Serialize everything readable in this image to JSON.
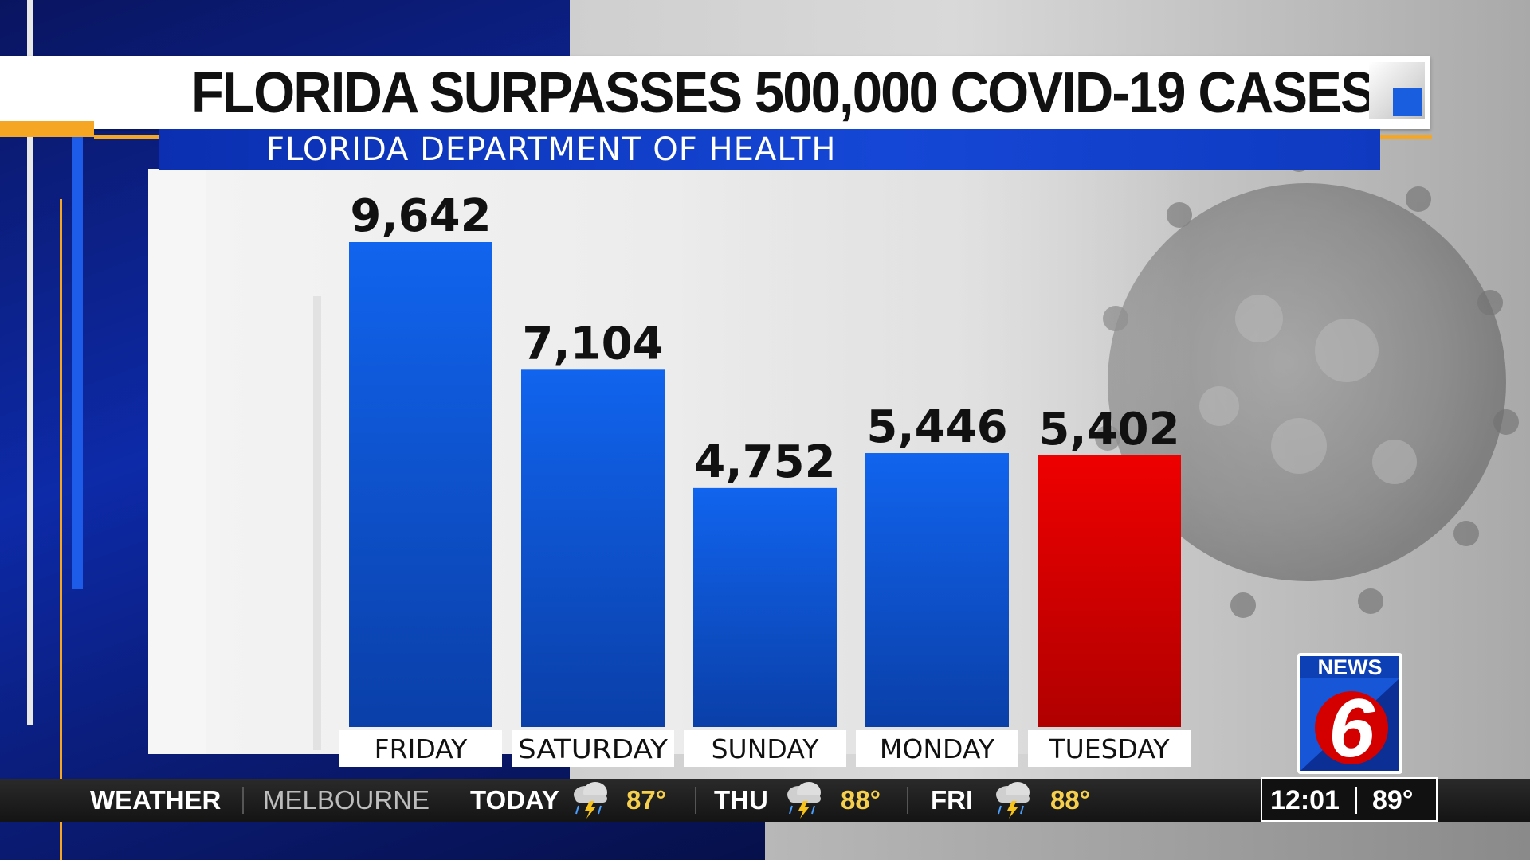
{
  "headline": "FLORIDA SURPASSES 500,000 COVID-19 CASES",
  "source": "FLORIDA DEPARTMENT OF HEALTH",
  "chart_data": {
    "type": "bar",
    "title": "FLORIDA SURPASSES 500,000 COVID-19 CASES",
    "subtitle": "FLORIDA DEPARTMENT OF HEALTH",
    "categories": [
      "FRIDAY",
      "SATURDAY",
      "SUNDAY",
      "MONDAY",
      "TUESDAY"
    ],
    "values": [
      9642,
      7104,
      4752,
      5446,
      5402
    ],
    "value_labels": [
      "9,642",
      "7,104",
      "4,752",
      "5,446",
      "5,402"
    ],
    "bar_colors": [
      "#1160ec",
      "#1160ec",
      "#1160ec",
      "#1160ec",
      "#e00000"
    ],
    "xlabel": "",
    "ylabel": "",
    "ylim": [
      0,
      9642
    ],
    "grid": false,
    "legend": "none"
  },
  "ticker": {
    "label": "WEATHER",
    "city": "MELBOURNE",
    "forecast": [
      {
        "day": "TODAY",
        "temp": "87°",
        "icon": "thunderstorm-icon"
      },
      {
        "day": "THU",
        "temp": "88°",
        "icon": "thunderstorm-icon"
      },
      {
        "day": "FRI",
        "temp": "88°",
        "icon": "thunderstorm-icon"
      }
    ],
    "time": "12:01",
    "current_temp": "89°"
  },
  "logo": {
    "text": "NEWS",
    "number": "6"
  },
  "colors": {
    "accent_blue": "#1547d6",
    "highlight_red": "#e00000",
    "orange": "#f5a623",
    "weather_yellow": "#f6d04d"
  }
}
